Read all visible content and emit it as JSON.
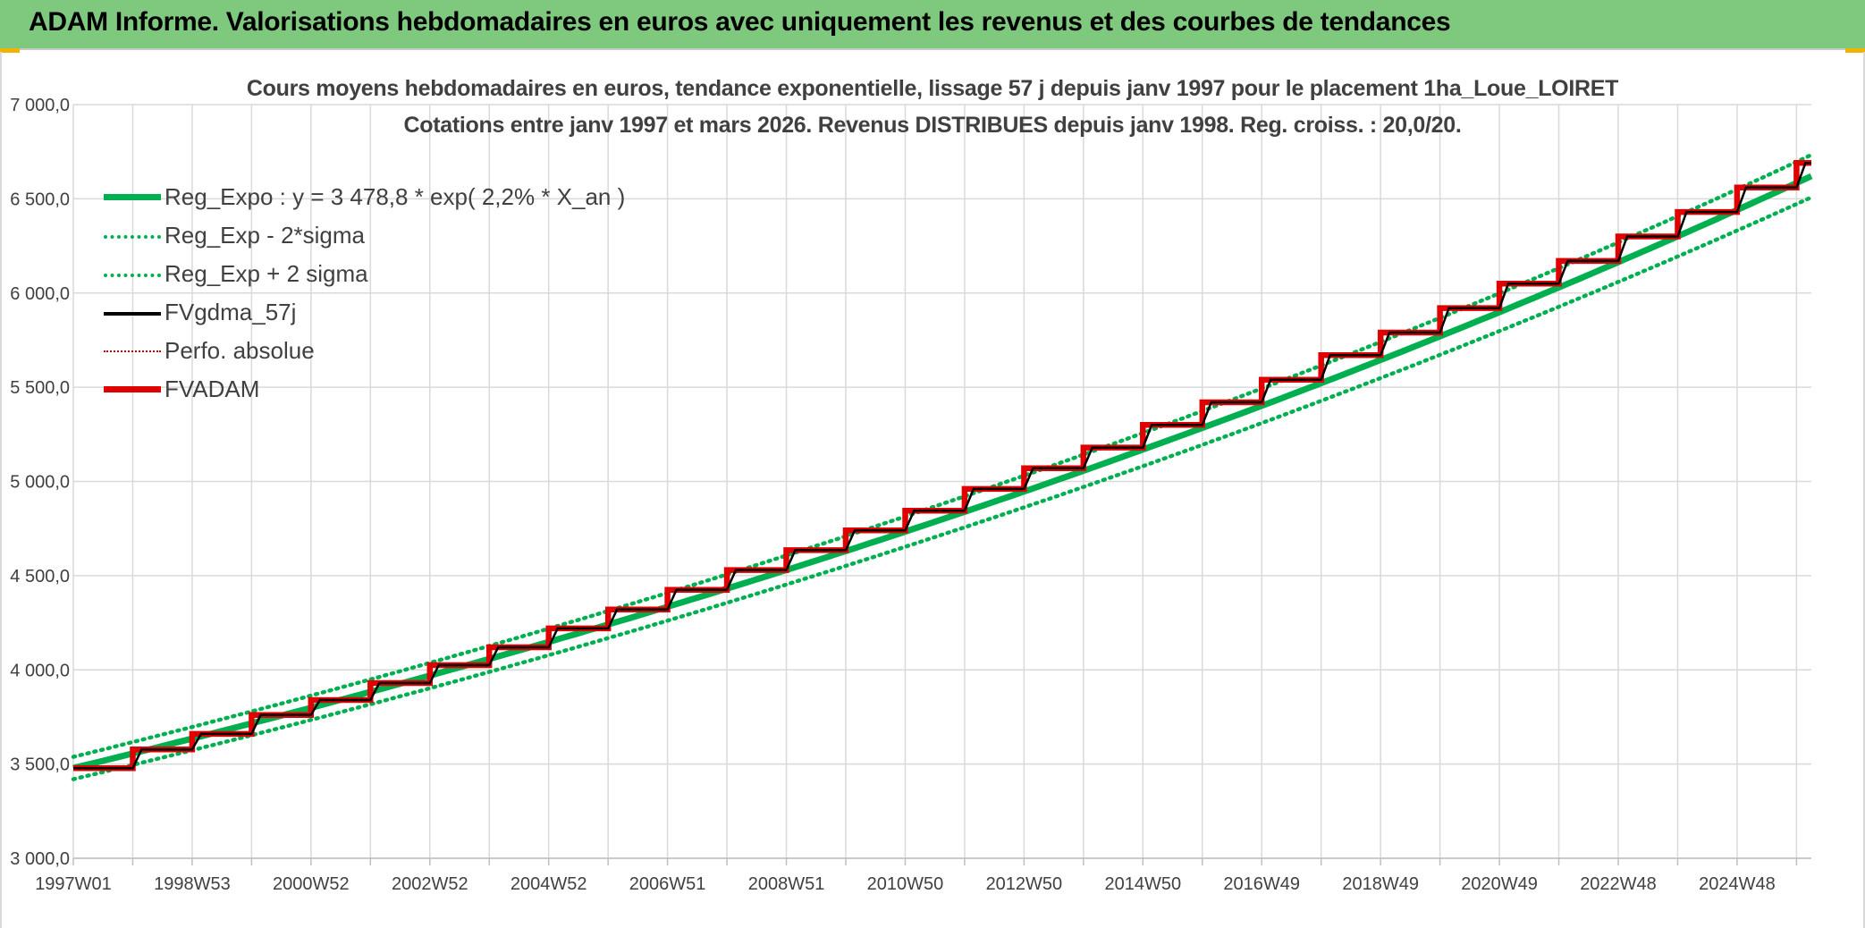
{
  "header": {
    "title": "ADAM Informe. Valorisations hebdomadaires en euros avec uniquement les revenus et des courbes de tendances"
  },
  "chart_data": {
    "type": "line",
    "title": "Cours moyens hebdomadaires en euros, tendance exponentielle, lissage 57 j depuis janv 1997 pour le placement 1ha_Loue_LOIRET",
    "subtitle": "Cotations entre janv 1997 et mars 2026. Revenus DISTRIBUES depuis janv 1998. Reg. croiss. : 20,0/20.",
    "xlabel": "",
    "ylabel": "",
    "ylim": [
      3000,
      7000
    ],
    "y_ticks": [
      3000,
      3500,
      4000,
      4500,
      5000,
      5500,
      6000,
      6500,
      7000
    ],
    "y_tick_labels": [
      "3 000,0",
      "3 500,0",
      "4 000,0",
      "4 500,0",
      "5 000,0",
      "5 500,0",
      "6 000,0",
      "6 500,0",
      "7 000,0"
    ],
    "x_range_years": [
      1997.0,
      2026.25
    ],
    "x_tick_labels": [
      "1997W01",
      "1998W53",
      "2000W52",
      "2002W52",
      "2004W52",
      "2006W51",
      "2008W51",
      "2010W50",
      "2012W50",
      "2014W50",
      "2016W49",
      "2018W49",
      "2020W49",
      "2022W48",
      "2024W48"
    ],
    "x_tick_years": [
      1997,
      1999,
      2001,
      2003,
      2005,
      2007,
      2009,
      2011,
      2013,
      2015,
      2017,
      2019,
      2021,
      2023,
      2025
    ],
    "grid": true,
    "legend_position": "top-left",
    "regression": {
      "a": 3478.8,
      "rate": 0.022,
      "sigma_band": 0.017
    },
    "series": [
      {
        "name": "Reg_Expo : y = 3 478,8 * exp( 2,2% *  X_an )",
        "color": "#00b050",
        "style": "solid-thick"
      },
      {
        "name": "Reg_Exp - 2*sigma",
        "color": "#00b050",
        "style": "dotted"
      },
      {
        "name": "Reg_Exp + 2 sigma",
        "color": "#00b050",
        "style": "dotted"
      },
      {
        "name": "FVgdma_57j",
        "color": "#000000",
        "style": "solid"
      },
      {
        "name": "Perfo. absolue",
        "color": "#c00000",
        "style": "dotted-thin"
      },
      {
        "name": "FVADAM",
        "color": "#e00000",
        "style": "solid-thick",
        "step_years": [
          1997,
          1998,
          1999,
          2000,
          2001,
          2002,
          2003,
          2004,
          2005,
          2006,
          2007,
          2008,
          2009,
          2010,
          2011,
          2012,
          2013,
          2014,
          2015,
          2016,
          2017,
          2018,
          2019,
          2020,
          2021,
          2022,
          2023,
          2024,
          2025,
          2026
        ],
        "step_values": [
          3478,
          3578,
          3660,
          3760,
          3840,
          3930,
          4025,
          4120,
          4220,
          4320,
          4425,
          4530,
          4635,
          4740,
          4845,
          4960,
          5070,
          5180,
          5300,
          5420,
          5540,
          5670,
          5790,
          5920,
          6050,
          6170,
          6300,
          6430,
          6560,
          6690
        ]
      }
    ]
  }
}
